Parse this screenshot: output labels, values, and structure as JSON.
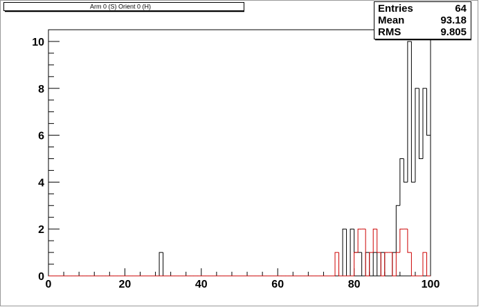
{
  "chart_data": {
    "type": "histogram",
    "title": "Arm 0 (S) Orient 0 (H)",
    "bins": [
      0,
      1,
      2,
      3,
      4,
      5,
      6,
      7,
      8,
      9,
      10,
      11,
      12,
      13,
      14,
      15,
      16,
      17,
      18,
      19,
      20,
      21,
      22,
      23,
      24,
      25,
      26,
      27,
      28,
      29,
      30,
      31,
      32,
      33,
      34,
      35,
      36,
      37,
      38,
      39,
      40,
      41,
      42,
      43,
      44,
      45,
      46,
      47,
      48,
      49,
      50,
      51,
      52,
      53,
      54,
      55,
      56,
      57,
      58,
      59,
      60,
      61,
      62,
      63,
      64,
      65,
      66,
      67,
      68,
      69,
      70,
      71,
      72,
      73,
      74,
      75,
      76,
      77,
      78,
      79,
      80,
      81,
      82,
      83,
      84,
      85,
      86,
      87,
      88,
      89,
      90,
      91,
      92,
      93,
      94,
      95,
      96,
      97,
      98,
      99,
      100
    ],
    "series": [
      {
        "color": "#000000",
        "values": [
          0,
          0,
          0,
          0,
          0,
          0,
          0,
          0,
          0,
          0,
          0,
          0,
          0,
          0,
          0,
          0,
          0,
          0,
          0,
          0,
          0,
          0,
          0,
          0,
          0,
          0,
          0,
          0,
          0,
          1,
          0,
          0,
          0,
          0,
          0,
          0,
          0,
          0,
          0,
          0,
          0,
          0,
          0,
          0,
          0,
          0,
          0,
          0,
          0,
          0,
          0,
          0,
          0,
          0,
          0,
          0,
          0,
          0,
          0,
          0,
          0,
          0,
          0,
          0,
          0,
          0,
          0,
          0,
          0,
          0,
          0,
          0,
          0,
          0,
          0,
          0,
          0,
          2,
          0,
          2,
          1,
          1,
          0,
          1,
          0,
          1,
          0,
          1,
          0,
          0,
          1,
          3,
          5,
          4,
          10,
          4,
          8,
          5,
          8,
          6
        ]
      },
      {
        "color": "#cc0000",
        "values": [
          0,
          0,
          0,
          0,
          0,
          0,
          0,
          0,
          0,
          0,
          0,
          0,
          0,
          0,
          0,
          0,
          0,
          0,
          0,
          0,
          0,
          0,
          0,
          0,
          0,
          0,
          0,
          0,
          0,
          0,
          0,
          0,
          0,
          0,
          0,
          0,
          0,
          0,
          0,
          0,
          0,
          0,
          0,
          0,
          0,
          0,
          0,
          0,
          0,
          0,
          0,
          0,
          0,
          0,
          0,
          0,
          0,
          0,
          0,
          0,
          0,
          0,
          0,
          0,
          0,
          0,
          0,
          0,
          0,
          0,
          0,
          0,
          0,
          0,
          0,
          1,
          0,
          0,
          0,
          0,
          1,
          2,
          2,
          0,
          1,
          2,
          1,
          0,
          1,
          1,
          0,
          1,
          2,
          2,
          1,
          0,
          0,
          0,
          1,
          0
        ]
      }
    ],
    "xlim": [
      0,
      100
    ],
    "xticks": [
      0,
      20,
      40,
      60,
      80,
      100
    ],
    "xminorticks": [
      4,
      8,
      12,
      16,
      24,
      28,
      32,
      36,
      44,
      48,
      52,
      56,
      64,
      68,
      72,
      76,
      84,
      88,
      92,
      96
    ],
    "ylim": [
      0,
      10.5
    ],
    "yticks": [
      0,
      2,
      4,
      6,
      8,
      10
    ],
    "yminorticks": [
      0.5,
      1,
      1.5,
      2.5,
      3,
      3.5,
      4.5,
      5,
      5.5,
      6.5,
      7,
      7.5,
      8.5,
      9,
      9.5,
      10.5
    ],
    "stats": [
      {
        "label": "Entries",
        "value": 64
      },
      {
        "label": "Mean",
        "value": 93.18
      },
      {
        "label": "RMS",
        "value": 9.805
      }
    ]
  }
}
